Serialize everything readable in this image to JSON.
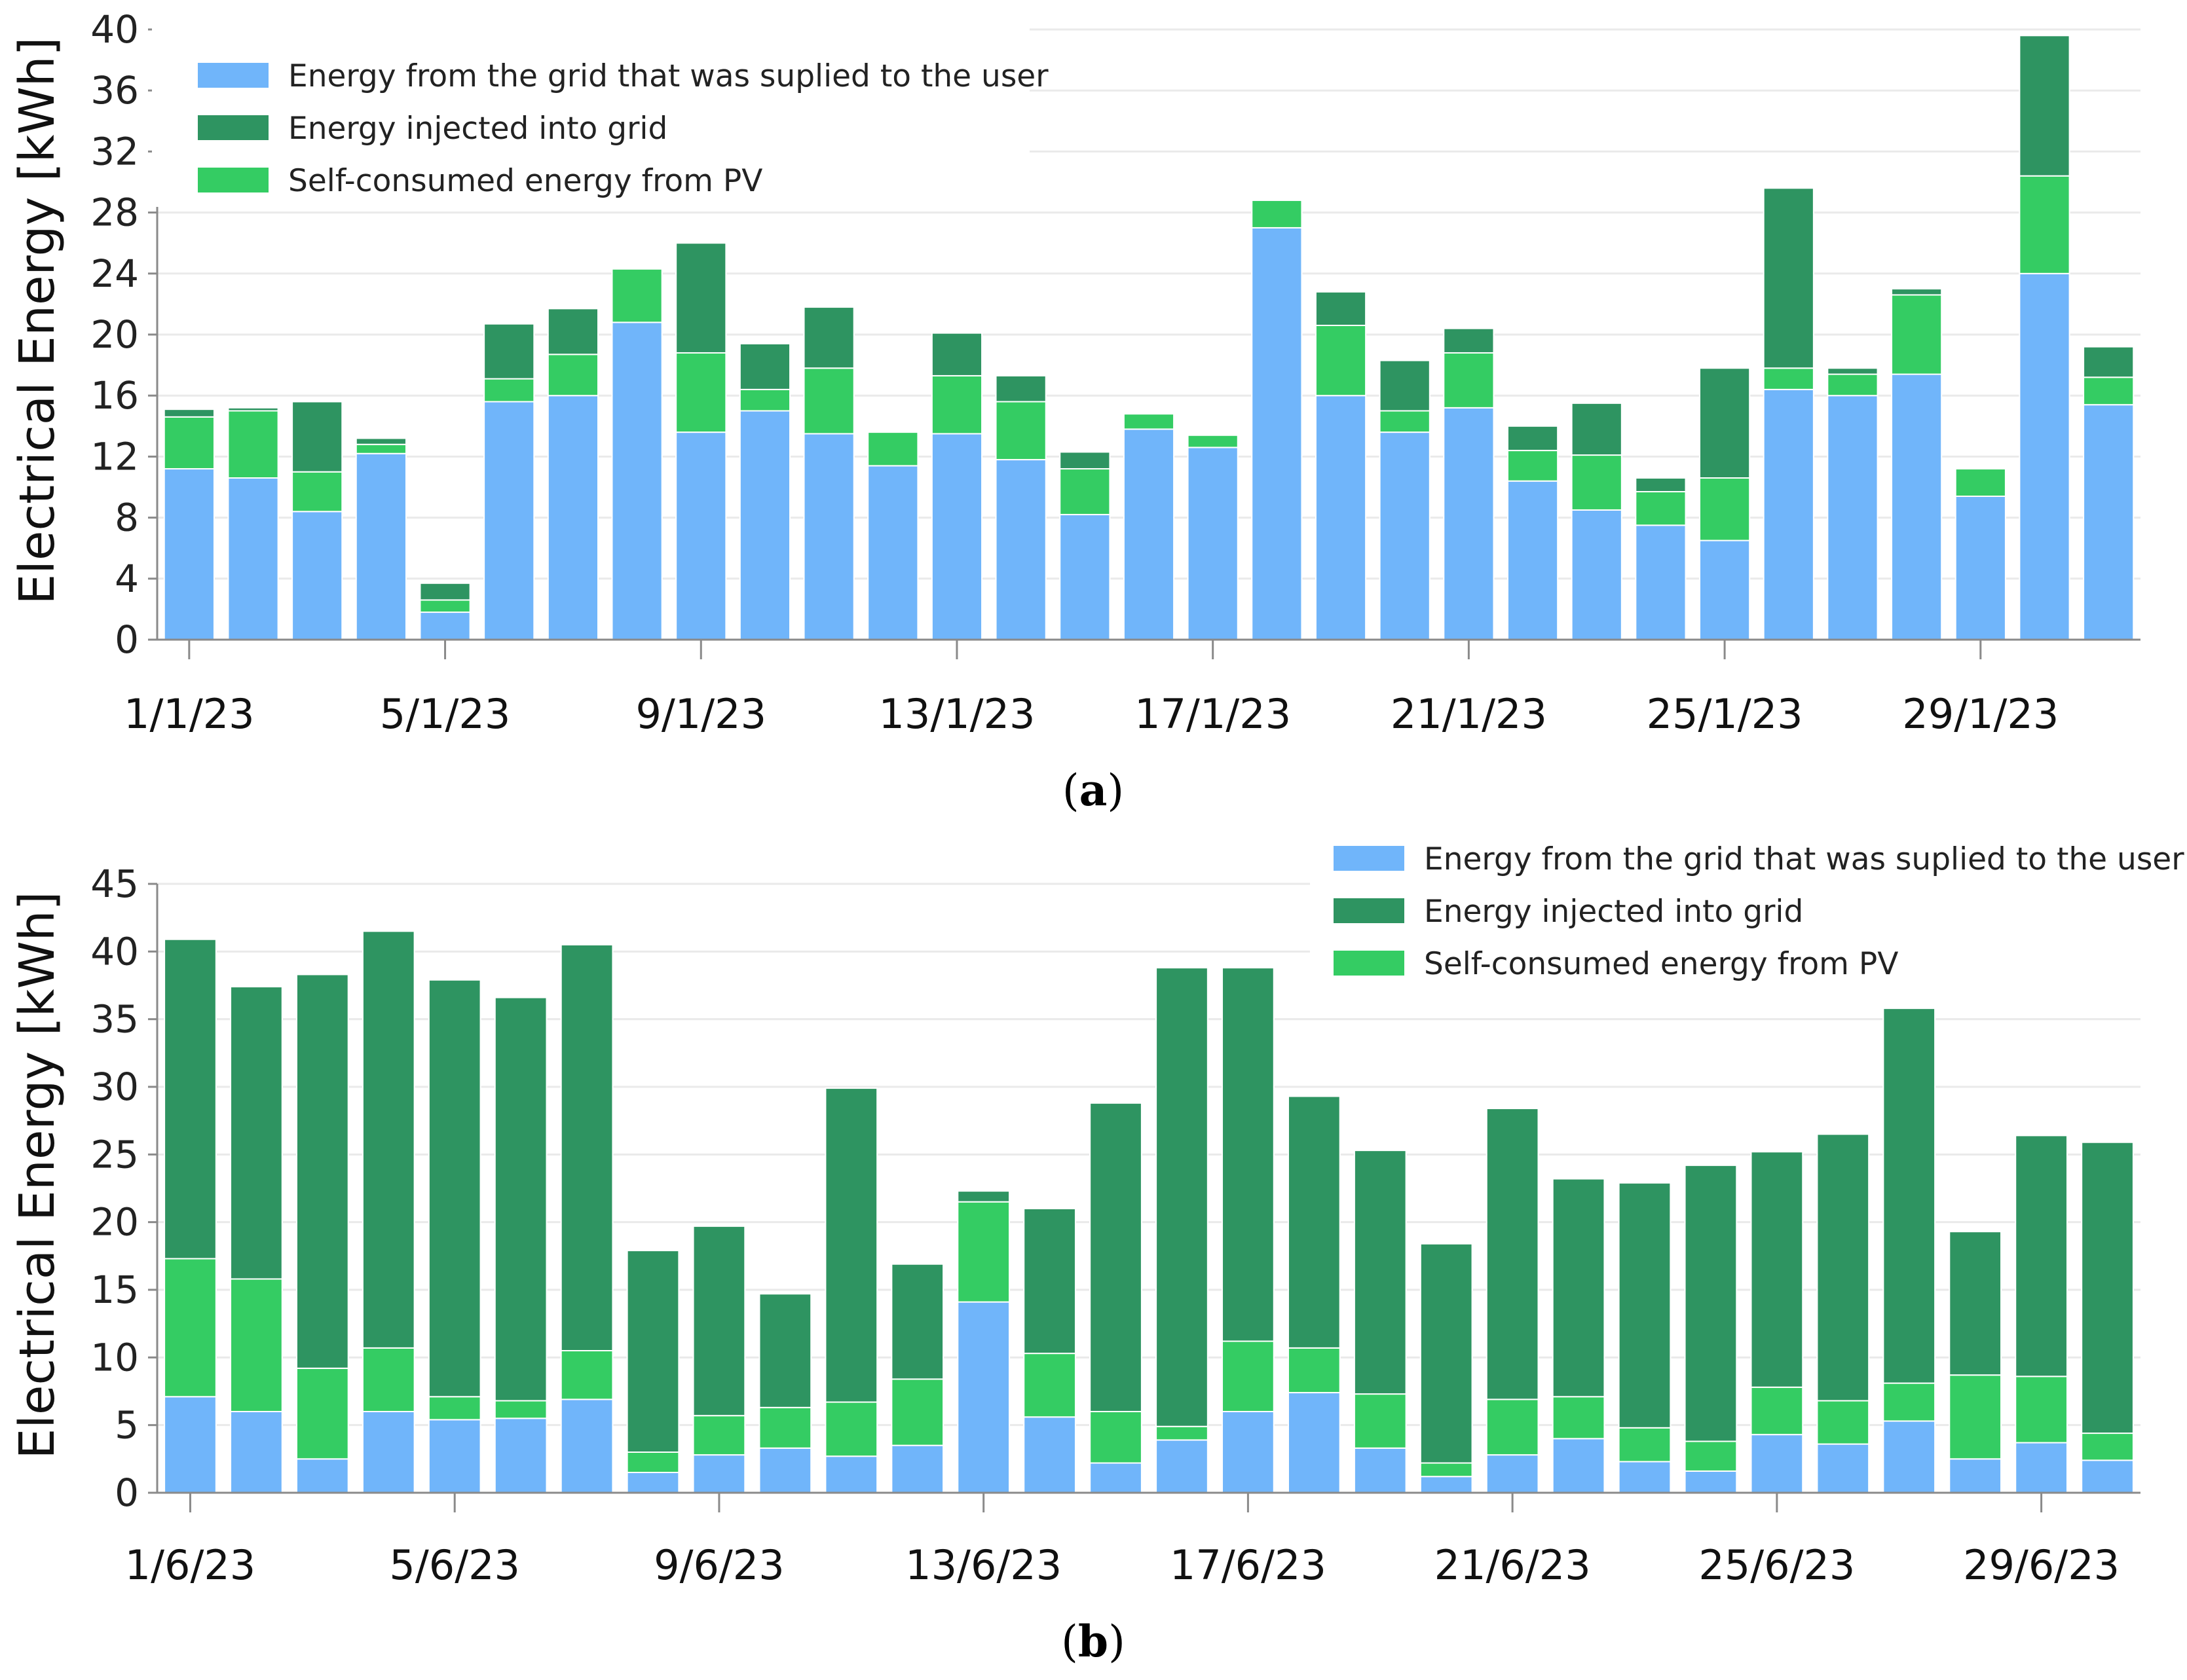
{
  "colors": {
    "grid": "#70B5FA",
    "injected": "#2E9461",
    "self": "#34CC63",
    "axis": "#8A8A8A",
    "gridline": "#EAEAEA"
  },
  "chart_data": [
    {
      "type": "bar",
      "stacked": true,
      "caption": "(a)",
      "caption_letter": "a",
      "title": "",
      "xlabel": "",
      "ylabel": "Electrical Energy [kWh]",
      "ylim": [
        0,
        40
      ],
      "yticks": [
        0,
        4,
        8,
        12,
        16,
        20,
        24,
        28,
        32,
        36,
        40
      ],
      "grid": true,
      "legend_position": "top-left",
      "categories": [
        "1/1/23",
        "2/1/23",
        "3/1/23",
        "4/1/23",
        "5/1/23",
        "6/1/23",
        "7/1/23",
        "8/1/23",
        "9/1/23",
        "10/1/23",
        "11/1/23",
        "12/1/23",
        "13/1/23",
        "14/1/23",
        "15/1/23",
        "16/1/23",
        "17/1/23",
        "18/1/23",
        "19/1/23",
        "20/1/23",
        "21/1/23",
        "22/1/23",
        "23/1/23",
        "24/1/23",
        "25/1/23",
        "26/1/23",
        "27/1/23",
        "28/1/23",
        "29/1/23",
        "30/1/23",
        "31/1/23"
      ],
      "tick_labels": [
        "1/1/23",
        "5/1/23",
        "9/1/23",
        "13/1/23",
        "17/1/23",
        "21/1/23",
        "25/1/23",
        "29/1/23"
      ],
      "tick_indices": [
        0,
        4,
        8,
        12,
        16,
        20,
        24,
        28
      ],
      "series": [
        {
          "name": "Energy from the grid that was suplied to the user",
          "color_key": "grid",
          "values": [
            11.2,
            10.6,
            8.4,
            12.2,
            1.8,
            15.6,
            16.0,
            20.8,
            13.6,
            15.0,
            13.5,
            11.4,
            13.5,
            11.8,
            8.2,
            13.8,
            12.6,
            27.0,
            16.0,
            13.6,
            15.2,
            10.4,
            8.5,
            7.5,
            6.5,
            16.4,
            16.0,
            17.4,
            9.4,
            24.0,
            15.4
          ]
        },
        {
          "name": "Self-consumed energy from PV",
          "color_key": "self",
          "values": [
            3.4,
            4.4,
            2.6,
            0.6,
            0.8,
            1.5,
            2.7,
            3.5,
            5.2,
            1.4,
            4.3,
            2.2,
            3.8,
            3.8,
            3.0,
            1.0,
            0.8,
            1.8,
            4.6,
            1.4,
            3.6,
            2.0,
            3.6,
            2.2,
            4.1,
            1.4,
            1.4,
            5.2,
            1.8,
            6.4,
            1.8
          ]
        },
        {
          "name": "Energy injected into grid",
          "color_key": "injected",
          "values": [
            0.5,
            0.2,
            4.6,
            0.4,
            1.1,
            3.6,
            3.0,
            0.0,
            7.2,
            3.0,
            4.0,
            0.0,
            2.8,
            1.7,
            1.1,
            0.0,
            0.0,
            0.0,
            2.2,
            3.3,
            1.6,
            1.6,
            3.4,
            0.9,
            7.2,
            11.8,
            0.4,
            0.4,
            0.0,
            9.2,
            2.0
          ]
        }
      ],
      "legend": [
        {
          "label": "Energy from the grid that was suplied to the user",
          "color_key": "grid"
        },
        {
          "label": "Energy injected into grid",
          "color_key": "injected"
        },
        {
          "label": "Self-consumed energy from PV",
          "color_key": "self"
        }
      ]
    },
    {
      "type": "bar",
      "stacked": true,
      "caption": "(b)",
      "caption_letter": "b",
      "title": "",
      "xlabel": "",
      "ylabel": "Electrical Energy [kWh]",
      "ylim": [
        0,
        45
      ],
      "yticks": [
        0,
        5,
        10,
        15,
        20,
        25,
        30,
        35,
        40,
        45
      ],
      "grid": true,
      "legend_position": "top-right",
      "categories": [
        "1/6/23",
        "2/6/23",
        "3/6/23",
        "4/6/23",
        "5/6/23",
        "6/6/23",
        "7/6/23",
        "8/6/23",
        "9/6/23",
        "10/6/23",
        "11/6/23",
        "12/6/23",
        "13/6/23",
        "14/6/23",
        "15/6/23",
        "16/6/23",
        "17/6/23",
        "18/6/23",
        "19/6/23",
        "20/6/23",
        "21/6/23",
        "22/6/23",
        "23/6/23",
        "24/6/23",
        "25/6/23",
        "26/6/23",
        "27/6/23",
        "28/6/23",
        "29/6/23",
        "30/6/23"
      ],
      "tick_labels": [
        "1/6/23",
        "5/6/23",
        "9/6/23",
        "13/6/23",
        "17/6/23",
        "21/6/23",
        "25/6/23",
        "29/6/23"
      ],
      "tick_indices": [
        0,
        4,
        8,
        12,
        16,
        20,
        24,
        28
      ],
      "series": [
        {
          "name": "Energy from the grid that was suplied to the user",
          "color_key": "grid",
          "values": [
            7.1,
            6.0,
            2.5,
            6.0,
            5.4,
            5.5,
            6.9,
            1.5,
            2.8,
            3.3,
            2.7,
            3.5,
            14.1,
            5.6,
            2.2,
            3.9,
            6.0,
            7.4,
            3.3,
            1.2,
            2.8,
            4.0,
            2.3,
            1.6,
            4.3,
            3.6,
            5.3,
            2.5,
            3.7,
            2.4
          ]
        },
        {
          "name": "Self-consumed energy from PV",
          "color_key": "self",
          "values": [
            10.2,
            9.8,
            6.7,
            4.7,
            1.7,
            1.3,
            3.6,
            1.5,
            2.9,
            3.0,
            4.0,
            4.9,
            7.4,
            4.7,
            3.8,
            1.0,
            5.2,
            3.3,
            4.0,
            1.0,
            4.1,
            3.1,
            2.5,
            2.2,
            3.5,
            3.2,
            2.8,
            6.2,
            4.9,
            2.0
          ]
        },
        {
          "name": "Energy injected into grid",
          "color_key": "injected",
          "values": [
            23.6,
            21.6,
            29.1,
            30.8,
            30.8,
            29.8,
            30.0,
            14.9,
            14.0,
            8.4,
            23.2,
            8.5,
            0.8,
            10.7,
            22.8,
            33.9,
            27.6,
            18.6,
            18.0,
            16.2,
            21.5,
            16.1,
            18.1,
            20.4,
            17.4,
            19.7,
            27.7,
            10.6,
            17.8,
            21.5
          ]
        }
      ],
      "legend": [
        {
          "label": "Energy from the grid that was suplied to the user",
          "color_key": "grid"
        },
        {
          "label": "Energy injected into grid",
          "color_key": "injected"
        },
        {
          "label": "Self-consumed energy from PV",
          "color_key": "self"
        }
      ]
    }
  ]
}
